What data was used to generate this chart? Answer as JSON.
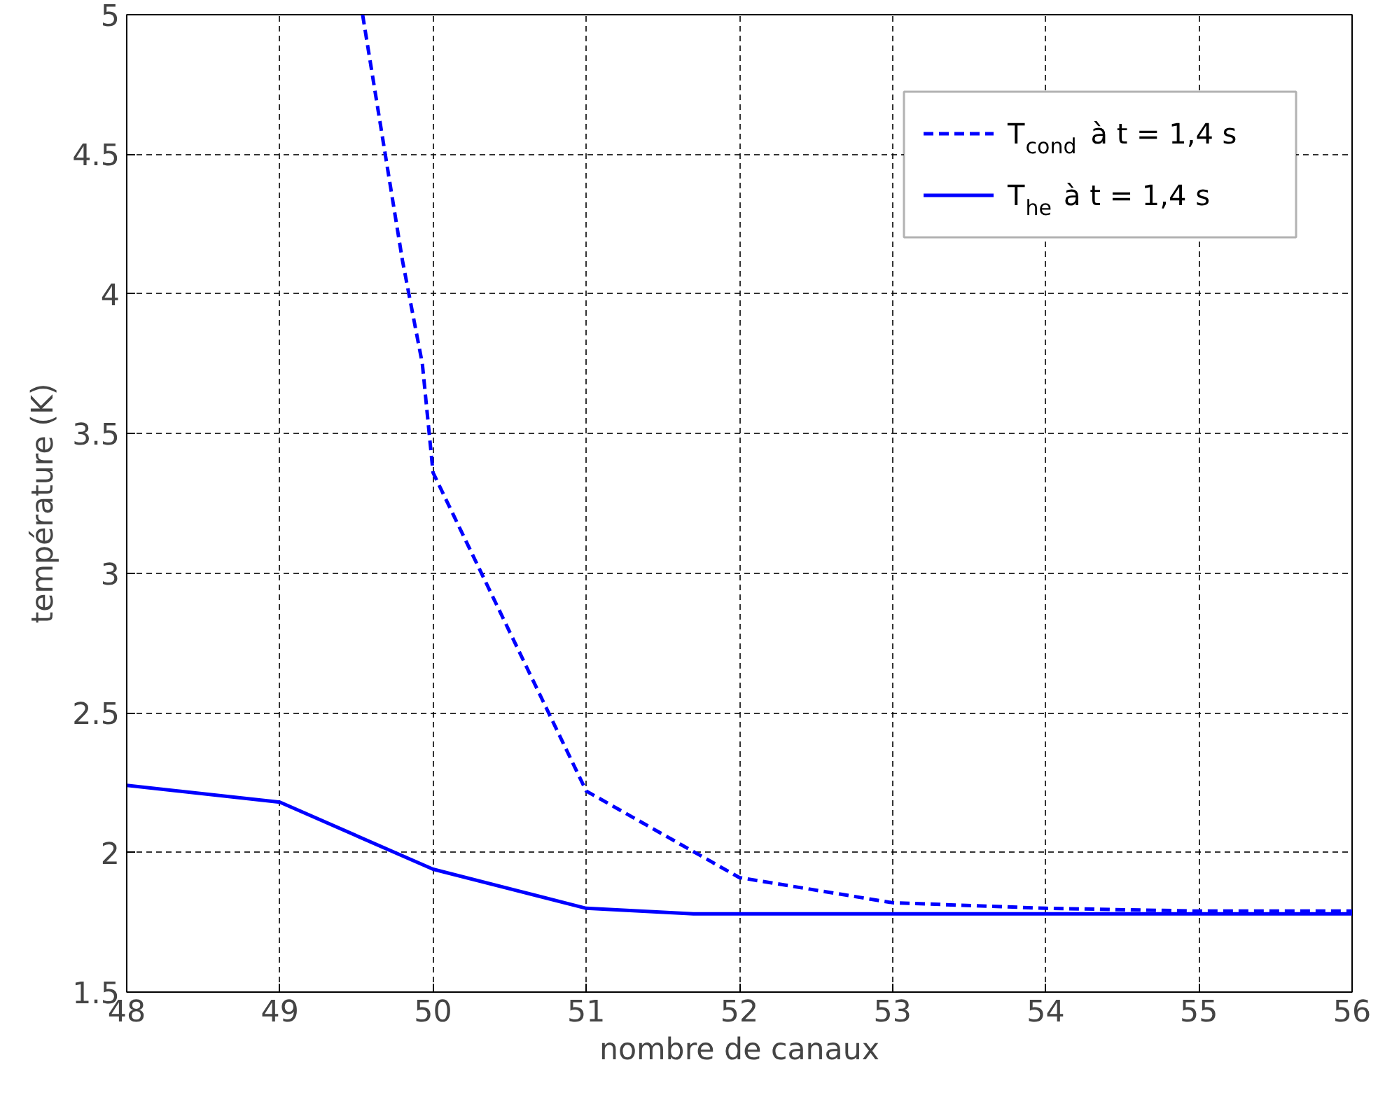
{
  "chart_data": {
    "type": "line",
    "xlabel": "nombre de canaux",
    "ylabel": "température (K)",
    "xlim": [
      48,
      56
    ],
    "ylim": [
      1.5,
      5
    ],
    "xticks": [
      48,
      49,
      50,
      51,
      52,
      53,
      54,
      55,
      56
    ],
    "yticks": [
      1.5,
      2,
      2.5,
      3,
      3.5,
      4,
      4.5,
      5
    ],
    "grid": true,
    "legend": "top right",
    "series": [
      {
        "name": "T$_{cond}$ à t = 1,4 s",
        "color": "#0000ff",
        "line_style": "dashed",
        "x": [
          49.54,
          49.8,
          49.93,
          50,
          51,
          52,
          53,
          54,
          55,
          56
        ],
        "values": [
          5,
          4.12,
          3.75,
          3.36,
          2.22,
          1.91,
          1.82,
          1.8,
          1.79,
          1.79
        ]
      },
      {
        "name": "T$_{he}$ à t = 1,4 s",
        "color": "#0000ff",
        "line_style": "solid",
        "x": [
          48,
          49,
          50,
          51,
          51.7,
          52,
          53,
          54,
          55,
          56
        ],
        "values": [
          2.24,
          2.18,
          1.94,
          1.8,
          1.78,
          1.78,
          1.78,
          1.78,
          1.78,
          1.78
        ]
      }
    ]
  }
}
